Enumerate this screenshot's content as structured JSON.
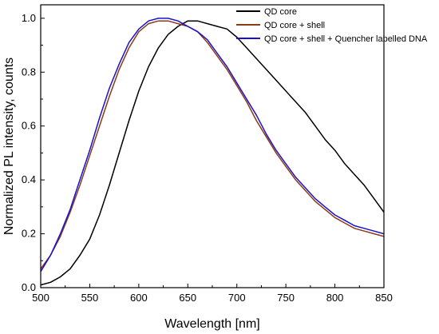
{
  "chart_data": {
    "type": "line",
    "xlabel": "Wavelength [nm]",
    "ylabel": "Normalized PL intensity, counts",
    "xlim": [
      500,
      850
    ],
    "ylim": [
      0.0,
      1.05
    ],
    "xticks": [
      500,
      550,
      600,
      650,
      700,
      750,
      800,
      850
    ],
    "yticks": [
      0.0,
      0.2,
      0.4,
      0.6,
      0.8,
      1.0
    ],
    "ytick_labels": [
      "0.0",
      "0.2",
      "0.4",
      "0.6",
      "0.8",
      "1.0"
    ],
    "grid": false,
    "legend_position": "top-right",
    "series": [
      {
        "name": "QD core",
        "color": "#000000",
        "x": [
          500,
          510,
          520,
          530,
          540,
          550,
          560,
          570,
          580,
          590,
          600,
          610,
          620,
          630,
          640,
          650,
          660,
          670,
          680,
          690,
          700,
          710,
          720,
          730,
          740,
          750,
          760,
          770,
          780,
          790,
          800,
          810,
          820,
          830,
          840,
          850
        ],
        "y": [
          0.01,
          0.02,
          0.04,
          0.07,
          0.12,
          0.18,
          0.27,
          0.38,
          0.5,
          0.62,
          0.73,
          0.82,
          0.89,
          0.94,
          0.97,
          0.99,
          0.99,
          0.98,
          0.97,
          0.96,
          0.93,
          0.89,
          0.85,
          0.81,
          0.77,
          0.73,
          0.69,
          0.65,
          0.6,
          0.55,
          0.51,
          0.46,
          0.42,
          0.38,
          0.33,
          0.28
        ]
      },
      {
        "name": "QD core + shell",
        "color": "#8b3a1a",
        "x": [
          500,
          510,
          520,
          530,
          540,
          550,
          560,
          570,
          580,
          590,
          600,
          610,
          620,
          630,
          640,
          650,
          660,
          670,
          680,
          690,
          700,
          710,
          720,
          730,
          740,
          750,
          760,
          770,
          780,
          790,
          800,
          810,
          820,
          830,
          840,
          850
        ],
        "y": [
          0.07,
          0.12,
          0.19,
          0.28,
          0.38,
          0.49,
          0.6,
          0.71,
          0.81,
          0.89,
          0.95,
          0.98,
          0.99,
          0.99,
          0.98,
          0.97,
          0.95,
          0.91,
          0.86,
          0.81,
          0.75,
          0.69,
          0.62,
          0.56,
          0.5,
          0.45,
          0.4,
          0.36,
          0.32,
          0.29,
          0.26,
          0.24,
          0.22,
          0.21,
          0.2,
          0.19
        ]
      },
      {
        "name": "QD core + shell + Quencher labelled DNA",
        "color": "#1a12cc",
        "x": [
          500,
          510,
          520,
          530,
          540,
          550,
          560,
          570,
          580,
          590,
          600,
          610,
          620,
          630,
          640,
          650,
          660,
          670,
          680,
          690,
          700,
          710,
          720,
          730,
          740,
          750,
          760,
          770,
          780,
          790,
          800,
          810,
          820,
          830,
          840,
          850
        ],
        "y": [
          0.06,
          0.12,
          0.2,
          0.29,
          0.4,
          0.51,
          0.63,
          0.74,
          0.83,
          0.91,
          0.96,
          0.99,
          1.0,
          1.0,
          0.99,
          0.97,
          0.95,
          0.92,
          0.87,
          0.82,
          0.76,
          0.7,
          0.64,
          0.57,
          0.51,
          0.46,
          0.41,
          0.37,
          0.33,
          0.3,
          0.27,
          0.25,
          0.23,
          0.22,
          0.21,
          0.2
        ]
      }
    ]
  }
}
